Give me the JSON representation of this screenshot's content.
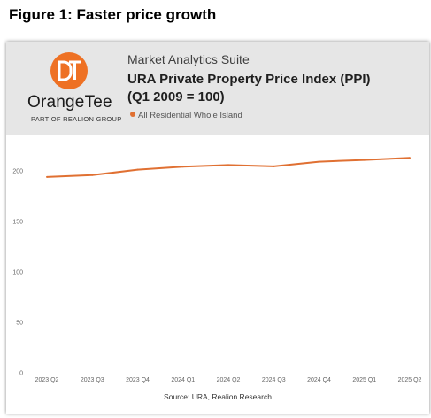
{
  "figure_title": "Figure 1: Faster price growth",
  "header": {
    "logo_name": "OrangeTee",
    "logo_sub": "PART OF REALION GROUP",
    "suite": "Market Analytics Suite",
    "chart_title": "URA Private Property Price Index (PPI) (Q1 2009 = 100)"
  },
  "source": "Source: URA, Realion Research",
  "colors": {
    "line": "#e07032",
    "logo": "#ee7124",
    "header_bg": "#e6e6e6"
  },
  "chart_data": {
    "type": "line",
    "categories": [
      "2023 Q2",
      "2023 Q3",
      "2023 Q4",
      "2024 Q1",
      "2024 Q2",
      "2024 Q3",
      "2024 Q4",
      "2025 Q1",
      "2025 Q2"
    ],
    "series": [
      {
        "name": "All Residential Whole Island",
        "values": [
          194.0,
          195.8,
          201.2,
          204.2,
          205.8,
          204.5,
          209.1,
          210.9,
          212.9
        ]
      }
    ],
    "yticks": [
      0,
      50,
      100,
      150,
      200
    ],
    "ylim": [
      0,
      215
    ],
    "title": "URA Private Property Price Index (PPI) (Q1 2009 = 100)",
    "legend_position": "top-left",
    "grid": false
  }
}
